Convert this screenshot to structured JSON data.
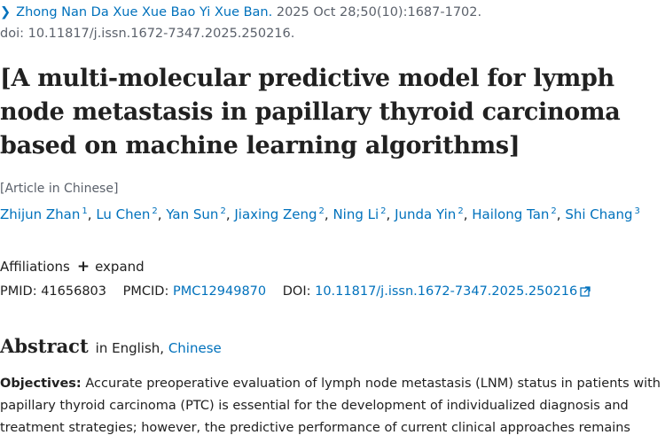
{
  "citation": {
    "chevron_icon": "chevron-right-icon",
    "journal": "Zhong Nan Da Xue Xue Bao Yi Xue Ban.",
    "details": "2025 Oct 28;50(10):1687-1702.",
    "doi_line": "doi: 10.11817/j.issn.1672-7347.2025.250216."
  },
  "title": "[A multi-molecular predictive model for lymph node metastasis in papillary thyroid carcinoma based on machine learning algorithms]",
  "article_language": "[Article in Chinese]",
  "authors": [
    {
      "name": "Zhijun Zhan",
      "aff": "1"
    },
    {
      "name": "Lu Chen",
      "aff": "2"
    },
    {
      "name": "Yan Sun",
      "aff": "2"
    },
    {
      "name": "Jiaxing Zeng",
      "aff": "2"
    },
    {
      "name": "Ning Li",
      "aff": "2"
    },
    {
      "name": "Junda Yin",
      "aff": "2"
    },
    {
      "name": "Hailong Tan",
      "aff": "2"
    },
    {
      "name": "Shi Chang",
      "aff": "3"
    }
  ],
  "affiliations": {
    "label": "Affiliations",
    "expand_label": "expand"
  },
  "ids": {
    "pmid_label": "PMID:",
    "pmid": "41656803",
    "pmcid_label": "PMCID:",
    "pmcid": "PMC12949870",
    "doi_label": "DOI:",
    "doi": "10.11817/j.issn.1672-7347.2025.250216"
  },
  "abstract": {
    "heading": "Abstract",
    "in_label": "in English,",
    "alt_language": "Chinese",
    "objectives_label": "Objectives:",
    "objectives_text": "Accurate preoperative evaluation of lymph node metastasis (LNM) status in patients with papillary thyroid carcinoma (PTC) is essential for the development of individualized diagnosis and treatment strategies; however, the predictive performance of current clinical approaches remains"
  },
  "colors": {
    "link": "#0071bc",
    "text": "#212121",
    "muted": "#5b616b"
  }
}
